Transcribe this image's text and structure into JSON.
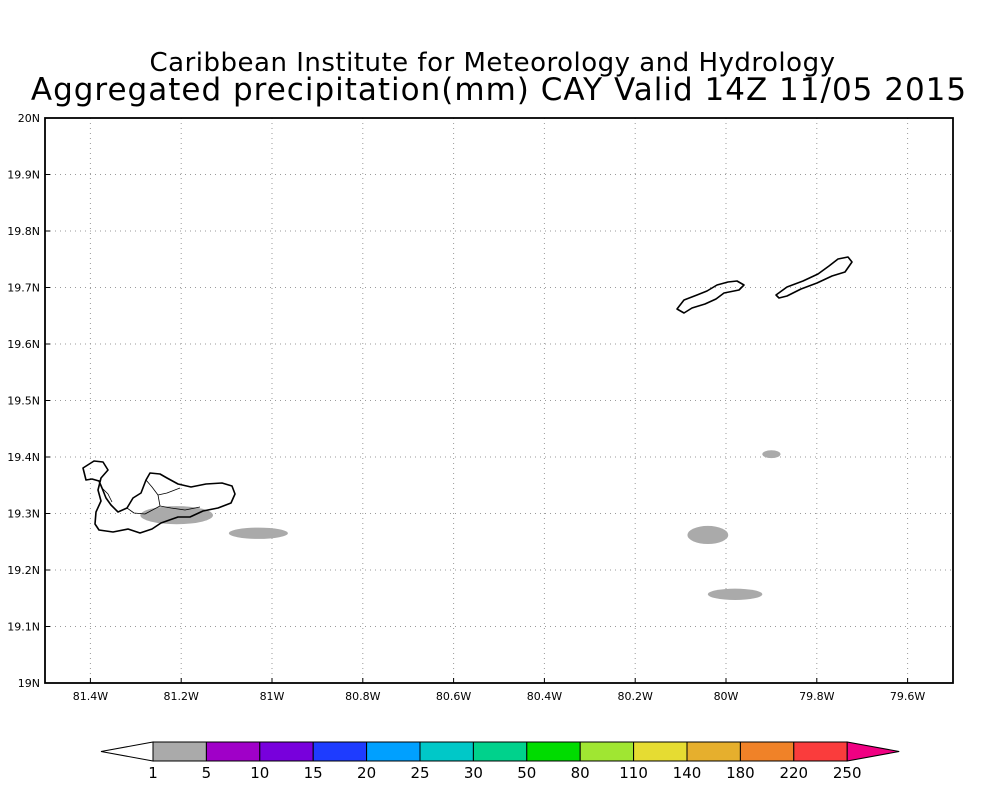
{
  "title": {
    "line1": "Caribbean Institute for Meteorology and Hydrology",
    "line2": "Aggregated precipitation(mm) CAY Valid 14Z 11/05 2015"
  },
  "map": {
    "lon_range": [
      -81.5,
      -79.5
    ],
    "lat_range": [
      19.0,
      20.0
    ],
    "grid": "dotted",
    "lat_ticks": [
      {
        "value": 20.0,
        "label": "20N"
      },
      {
        "value": 19.9,
        "label": "19.9N"
      },
      {
        "value": 19.8,
        "label": "19.8N"
      },
      {
        "value": 19.7,
        "label": "19.7N"
      },
      {
        "value": 19.6,
        "label": "19.6N"
      },
      {
        "value": 19.5,
        "label": "19.5N"
      },
      {
        "value": 19.4,
        "label": "19.4N"
      },
      {
        "value": 19.3,
        "label": "19.3N"
      },
      {
        "value": 19.2,
        "label": "19.2N"
      },
      {
        "value": 19.1,
        "label": "19.1N"
      },
      {
        "value": 19.0,
        "label": "19N"
      }
    ],
    "lon_ticks": [
      {
        "value": -81.4,
        "label": "81.4W"
      },
      {
        "value": -81.2,
        "label": "81.2W"
      },
      {
        "value": -81.0,
        "label": "81W"
      },
      {
        "value": -80.8,
        "label": "80.8W"
      },
      {
        "value": -80.6,
        "label": "80.6W"
      },
      {
        "value": -80.4,
        "label": "80.4W"
      },
      {
        "value": -80.2,
        "label": "80.2W"
      },
      {
        "value": -80.0,
        "label": "80W"
      },
      {
        "value": -79.8,
        "label": "79.8W"
      },
      {
        "value": -79.6,
        "label": "79.6W"
      }
    ],
    "precip_areas": [
      {
        "lon": -81.21,
        "lat": 19.297,
        "rx_deg": 0.08,
        "ry_deg": 0.016,
        "category": "1-5"
      },
      {
        "lon": -81.03,
        "lat": 19.265,
        "rx_deg": 0.065,
        "ry_deg": 0.01,
        "category": "1-5"
      },
      {
        "lon": -80.04,
        "lat": 19.262,
        "rx_deg": 0.045,
        "ry_deg": 0.016,
        "category": "1-5"
      },
      {
        "lon": -79.98,
        "lat": 19.157,
        "rx_deg": 0.06,
        "ry_deg": 0.01,
        "category": "1-5"
      },
      {
        "lon": -79.9,
        "lat": 19.405,
        "rx_deg": 0.02,
        "ry_deg": 0.007,
        "category": "1-5"
      }
    ],
    "islands": [
      "Grand Cayman",
      "Little Cayman",
      "Cayman Brac"
    ]
  },
  "colorbar": {
    "labels": [
      "1",
      "5",
      "10",
      "15",
      "20",
      "25",
      "30",
      "50",
      "80",
      "110",
      "140",
      "180",
      "220",
      "250"
    ],
    "colors": [
      "#aaaaaa",
      "#a000c8",
      "#7800dc",
      "#1e3cff",
      "#00a0ff",
      "#00c8c8",
      "#00d28c",
      "#00dc00",
      "#a0e632",
      "#e6dc32",
      "#e6af2d",
      "#f08228",
      "#fa3c3c",
      "#f00082"
    ],
    "under_color": "#ffffff"
  }
}
